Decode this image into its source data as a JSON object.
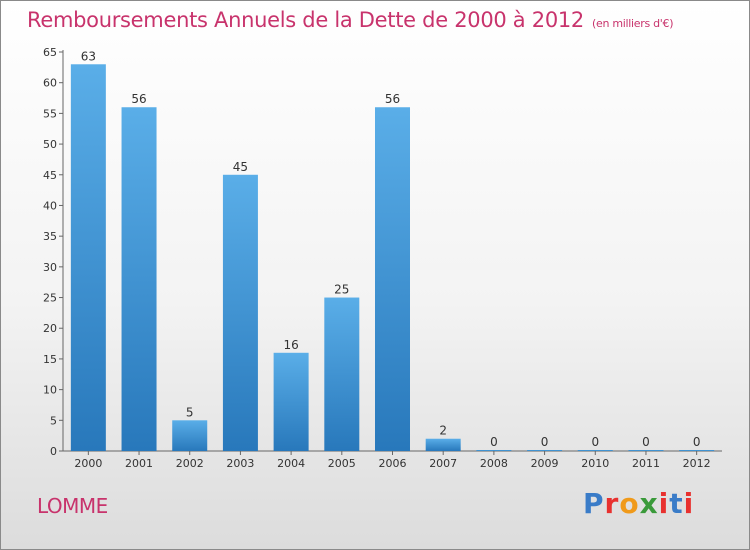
{
  "header": {
    "title": "Remboursements Annuels de la Dette de 2000 à 2012",
    "subtitle": "(en milliers d'€)"
  },
  "footer": {
    "city": "LOMME",
    "logo": "Proxiti"
  },
  "colors": {
    "title": "#c8336c",
    "bar_light": "#5aaee8",
    "bar_dark": "#2878bb",
    "logo_letters": [
      "#3a7cc8",
      "#e8312f",
      "#f09a1a",
      "#3a9a3a",
      "#e8312f",
      "#3a7cc8",
      "#e8312f"
    ]
  },
  "chart_data": {
    "type": "bar",
    "categories": [
      "2000",
      "2001",
      "2002",
      "2003",
      "2004",
      "2005",
      "2006",
      "2007",
      "2008",
      "2009",
      "2010",
      "2011",
      "2012"
    ],
    "values": [
      63,
      56,
      5,
      45,
      16,
      25,
      56,
      2,
      0,
      0,
      0,
      0,
      0
    ],
    "ylim": [
      0,
      65
    ],
    "yticks": [
      0,
      5,
      10,
      15,
      20,
      25,
      30,
      35,
      40,
      45,
      50,
      55,
      60,
      65
    ],
    "grid": false,
    "legend": "none"
  }
}
